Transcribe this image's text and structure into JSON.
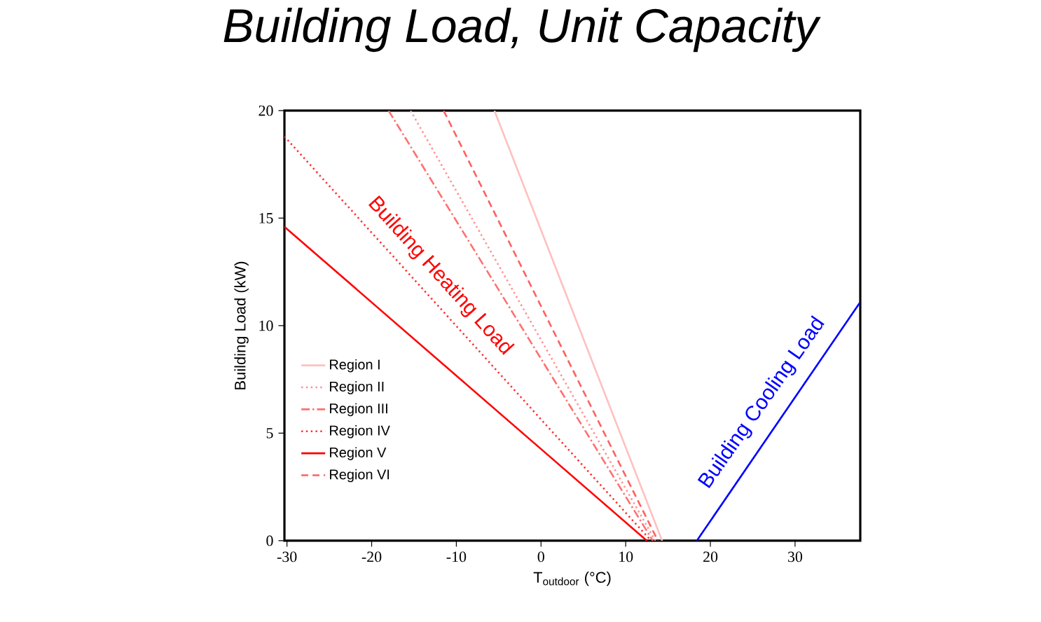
{
  "chart_data": {
    "type": "line",
    "title": "Building Load, Unit Capacity",
    "xlabel": "T$_{outdoor}$ (°C)",
    "ylabel": "Building Load (kW)",
    "xlim": [
      -30.3,
      37.7
    ],
    "ylim": [
      0,
      20
    ],
    "xticks": [
      -30,
      -20,
      -10,
      0,
      10,
      20,
      30
    ],
    "yticks": [
      0,
      5,
      10,
      15,
      20
    ],
    "grid": false,
    "legend": "center left",
    "series": [
      {
        "name": "Region I",
        "color": "#ffc0c0",
        "line_style": "solid",
        "x": [
          -5.5,
          14.3
        ],
        "values": [
          20,
          0
        ]
      },
      {
        "name": "Region II",
        "color": "#ff9090",
        "line_style": "dotted",
        "x": [
          -15.4,
          13.5
        ],
        "values": [
          20,
          0
        ]
      },
      {
        "name": "Region III",
        "color": "#ff7070",
        "line_style": "dashdot",
        "x": [
          -18.0,
          13.2
        ],
        "values": [
          20,
          0
        ]
      },
      {
        "name": "Region IV",
        "color": "#ff3030",
        "line_style": "dotted",
        "x": [
          -30.3,
          13.0
        ],
        "values": [
          18.8,
          0
        ]
      },
      {
        "name": "Region V",
        "color": "#ff0000",
        "line_style": "solid",
        "x": [
          -30.3,
          12.5
        ],
        "values": [
          14.6,
          0
        ]
      },
      {
        "name": "Region VI",
        "color": "#ff6060",
        "line_style": "dashed",
        "x": [
          -11.5,
          13.8
        ],
        "values": [
          20,
          0
        ]
      },
      {
        "color": "#0000ff",
        "line_style": "solid",
        "x": [
          18.4,
          37.7
        ],
        "values": [
          0,
          11.1
        ]
      }
    ],
    "annotations": [
      "Building Heating Load",
      "Building Cooling Load"
    ]
  }
}
